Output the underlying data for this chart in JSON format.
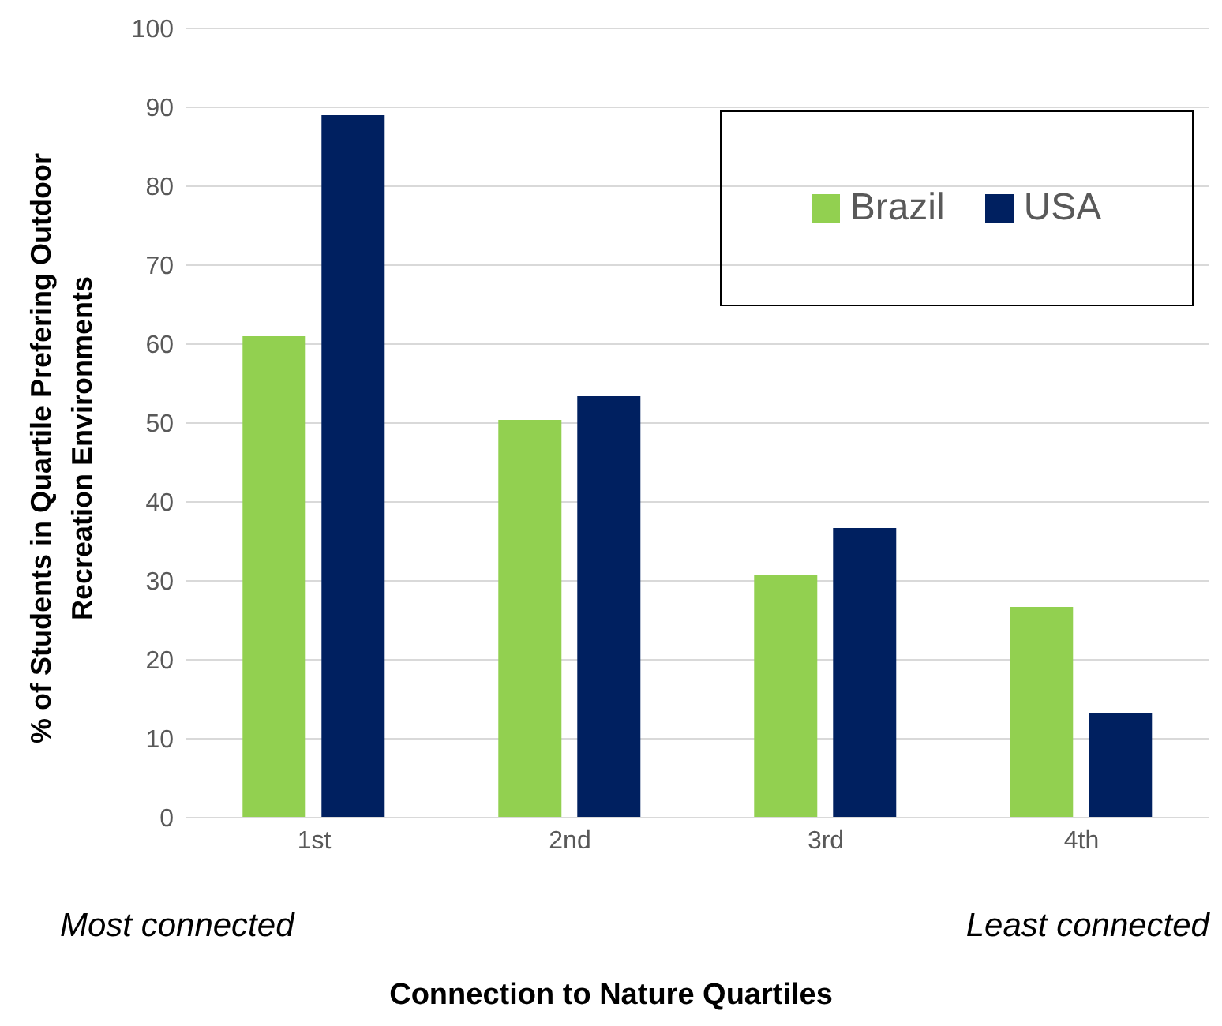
{
  "chart_data": {
    "type": "bar",
    "xlabel": "Connection to Nature Quartiles",
    "ylabel": "% of Students in Quartile Prefering Outdoor Recreation Environments",
    "categories": [
      "1st",
      "2nd",
      "3rd",
      "4th"
    ],
    "series": [
      {
        "name": "Brazil",
        "color": "#92d050",
        "values": [
          61,
          50.4,
          30.8,
          26.7
        ]
      },
      {
        "name": "USA",
        "color": "#002060",
        "values": [
          89,
          53.4,
          36.7,
          13.3
        ]
      }
    ],
    "ylim": [
      0,
      100
    ],
    "yticks": [
      0,
      10,
      20,
      30,
      40,
      50,
      60,
      70,
      80,
      90,
      100
    ],
    "grid": "y",
    "legend": "top right",
    "annotations": [
      "Most connected",
      "Least connected"
    ]
  }
}
